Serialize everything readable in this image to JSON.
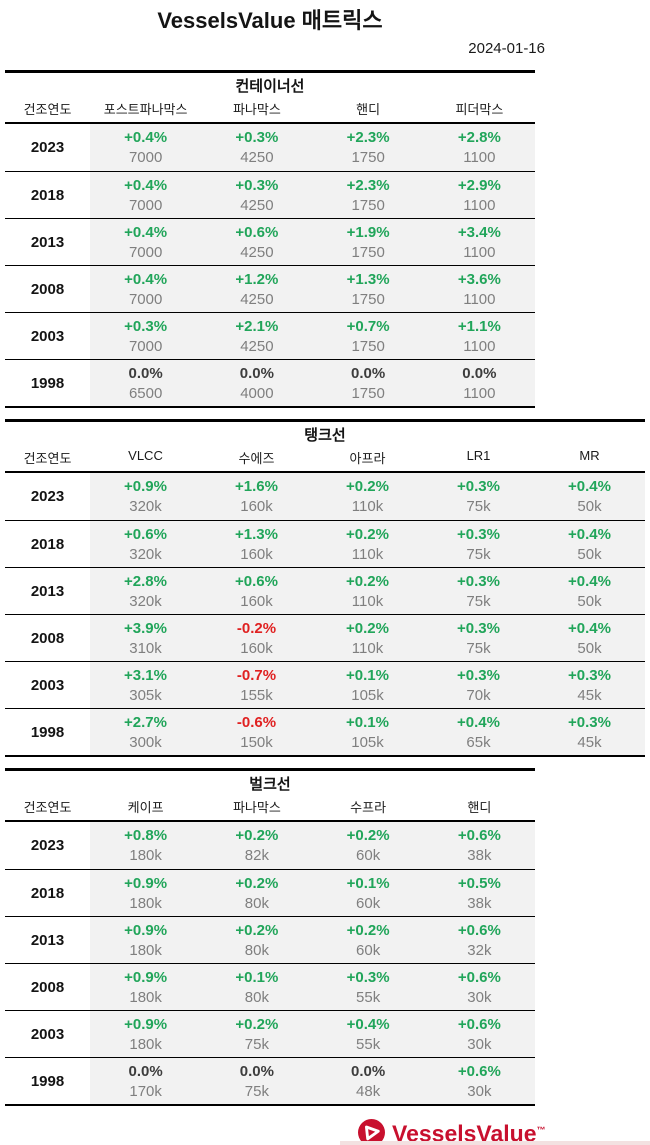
{
  "header": {
    "title": "VesselsValue 매트릭스",
    "date": "2024-01-16"
  },
  "chart_data": [
    {
      "type": "table",
      "title": "컨테이너선",
      "year_header": "건조연도",
      "columns": [
        "포스트파나막스",
        "파나막스",
        "핸디",
        "피더막스"
      ],
      "rows": [
        {
          "year": "2023",
          "cells": [
            {
              "pct": "+0.4%",
              "value": "7000",
              "trend": "up"
            },
            {
              "pct": "+0.3%",
              "value": "4250",
              "trend": "up"
            },
            {
              "pct": "+2.3%",
              "value": "1750",
              "trend": "up"
            },
            {
              "pct": "+2.8%",
              "value": "1100",
              "trend": "up"
            }
          ]
        },
        {
          "year": "2018",
          "cells": [
            {
              "pct": "+0.4%",
              "value": "7000",
              "trend": "up"
            },
            {
              "pct": "+0.3%",
              "value": "4250",
              "trend": "up"
            },
            {
              "pct": "+2.3%",
              "value": "1750",
              "trend": "up"
            },
            {
              "pct": "+2.9%",
              "value": "1100",
              "trend": "up"
            }
          ]
        },
        {
          "year": "2013",
          "cells": [
            {
              "pct": "+0.4%",
              "value": "7000",
              "trend": "up"
            },
            {
              "pct": "+0.6%",
              "value": "4250",
              "trend": "up"
            },
            {
              "pct": "+1.9%",
              "value": "1750",
              "trend": "up"
            },
            {
              "pct": "+3.4%",
              "value": "1100",
              "trend": "up"
            }
          ]
        },
        {
          "year": "2008",
          "cells": [
            {
              "pct": "+0.4%",
              "value": "7000",
              "trend": "up"
            },
            {
              "pct": "+1.2%",
              "value": "4250",
              "trend": "up"
            },
            {
              "pct": "+1.3%",
              "value": "1750",
              "trend": "up"
            },
            {
              "pct": "+3.6%",
              "value": "1100",
              "trend": "up"
            }
          ]
        },
        {
          "year": "2003",
          "cells": [
            {
              "pct": "+0.3%",
              "value": "7000",
              "trend": "up"
            },
            {
              "pct": "+2.1%",
              "value": "4250",
              "trend": "up"
            },
            {
              "pct": "+0.7%",
              "value": "1750",
              "trend": "up"
            },
            {
              "pct": "+1.1%",
              "value": "1100",
              "trend": "up"
            }
          ]
        },
        {
          "year": "1998",
          "cells": [
            {
              "pct": "0.0%",
              "value": "6500",
              "trend": "flat"
            },
            {
              "pct": "0.0%",
              "value": "4000",
              "trend": "flat"
            },
            {
              "pct": "0.0%",
              "value": "1750",
              "trend": "flat"
            },
            {
              "pct": "0.0%",
              "value": "1100",
              "trend": "flat"
            }
          ]
        }
      ]
    },
    {
      "type": "table",
      "title": "탱크선",
      "year_header": "건조연도",
      "columns": [
        "VLCC",
        "수에즈",
        "아프라",
        "LR1",
        "MR"
      ],
      "rows": [
        {
          "year": "2023",
          "cells": [
            {
              "pct": "+0.9%",
              "value": "320k",
              "trend": "up"
            },
            {
              "pct": "+1.6%",
              "value": "160k",
              "trend": "up"
            },
            {
              "pct": "+0.2%",
              "value": "110k",
              "trend": "up"
            },
            {
              "pct": "+0.3%",
              "value": "75k",
              "trend": "up"
            },
            {
              "pct": "+0.4%",
              "value": "50k",
              "trend": "up"
            }
          ]
        },
        {
          "year": "2018",
          "cells": [
            {
              "pct": "+0.6%",
              "value": "320k",
              "trend": "up"
            },
            {
              "pct": "+1.3%",
              "value": "160k",
              "trend": "up"
            },
            {
              "pct": "+0.2%",
              "value": "110k",
              "trend": "up"
            },
            {
              "pct": "+0.3%",
              "value": "75k",
              "trend": "up"
            },
            {
              "pct": "+0.4%",
              "value": "50k",
              "trend": "up"
            }
          ]
        },
        {
          "year": "2013",
          "cells": [
            {
              "pct": "+2.8%",
              "value": "320k",
              "trend": "up"
            },
            {
              "pct": "+0.6%",
              "value": "160k",
              "trend": "up"
            },
            {
              "pct": "+0.2%",
              "value": "110k",
              "trend": "up"
            },
            {
              "pct": "+0.3%",
              "value": "75k",
              "trend": "up"
            },
            {
              "pct": "+0.4%",
              "value": "50k",
              "trend": "up"
            }
          ]
        },
        {
          "year": "2008",
          "cells": [
            {
              "pct": "+3.9%",
              "value": "310k",
              "trend": "up"
            },
            {
              "pct": "-0.2%",
              "value": "160k",
              "trend": "down"
            },
            {
              "pct": "+0.2%",
              "value": "110k",
              "trend": "up"
            },
            {
              "pct": "+0.3%",
              "value": "75k",
              "trend": "up"
            },
            {
              "pct": "+0.4%",
              "value": "50k",
              "trend": "up"
            }
          ]
        },
        {
          "year": "2003",
          "cells": [
            {
              "pct": "+3.1%",
              "value": "305k",
              "trend": "up"
            },
            {
              "pct": "-0.7%",
              "value": "155k",
              "trend": "down"
            },
            {
              "pct": "+0.1%",
              "value": "105k",
              "trend": "up"
            },
            {
              "pct": "+0.3%",
              "value": "70k",
              "trend": "up"
            },
            {
              "pct": "+0.3%",
              "value": "45k",
              "trend": "up"
            }
          ]
        },
        {
          "year": "1998",
          "cells": [
            {
              "pct": "+2.7%",
              "value": "300k",
              "trend": "up"
            },
            {
              "pct": "-0.6%",
              "value": "150k",
              "trend": "down"
            },
            {
              "pct": "+0.1%",
              "value": "105k",
              "trend": "up"
            },
            {
              "pct": "+0.4%",
              "value": "65k",
              "trend": "up"
            },
            {
              "pct": "+0.3%",
              "value": "45k",
              "trend": "up"
            }
          ]
        }
      ]
    },
    {
      "type": "table",
      "title": "벌크선",
      "year_header": "건조연도",
      "columns": [
        "케이프",
        "파나막스",
        "수프라",
        "핸디"
      ],
      "rows": [
        {
          "year": "2023",
          "cells": [
            {
              "pct": "+0.8%",
              "value": "180k",
              "trend": "up"
            },
            {
              "pct": "+0.2%",
              "value": "82k",
              "trend": "up"
            },
            {
              "pct": "+0.2%",
              "value": "60k",
              "trend": "up"
            },
            {
              "pct": "+0.6%",
              "value": "38k",
              "trend": "up"
            }
          ]
        },
        {
          "year": "2018",
          "cells": [
            {
              "pct": "+0.9%",
              "value": "180k",
              "trend": "up"
            },
            {
              "pct": "+0.2%",
              "value": "80k",
              "trend": "up"
            },
            {
              "pct": "+0.1%",
              "value": "60k",
              "trend": "up"
            },
            {
              "pct": "+0.5%",
              "value": "38k",
              "trend": "up"
            }
          ]
        },
        {
          "year": "2013",
          "cells": [
            {
              "pct": "+0.9%",
              "value": "180k",
              "trend": "up"
            },
            {
              "pct": "+0.2%",
              "value": "80k",
              "trend": "up"
            },
            {
              "pct": "+0.2%",
              "value": "60k",
              "trend": "up"
            },
            {
              "pct": "+0.6%",
              "value": "32k",
              "trend": "up"
            }
          ]
        },
        {
          "year": "2008",
          "cells": [
            {
              "pct": "+0.9%",
              "value": "180k",
              "trend": "up"
            },
            {
              "pct": "+0.1%",
              "value": "80k",
              "trend": "up"
            },
            {
              "pct": "+0.3%",
              "value": "55k",
              "trend": "up"
            },
            {
              "pct": "+0.6%",
              "value": "30k",
              "trend": "up"
            }
          ]
        },
        {
          "year": "2003",
          "cells": [
            {
              "pct": "+0.9%",
              "value": "180k",
              "trend": "up"
            },
            {
              "pct": "+0.2%",
              "value": "75k",
              "trend": "up"
            },
            {
              "pct": "+0.4%",
              "value": "55k",
              "trend": "up"
            },
            {
              "pct": "+0.6%",
              "value": "30k",
              "trend": "up"
            }
          ]
        },
        {
          "year": "1998",
          "cells": [
            {
              "pct": "0.0%",
              "value": "170k",
              "trend": "flat"
            },
            {
              "pct": "0.0%",
              "value": "75k",
              "trend": "flat"
            },
            {
              "pct": "0.0%",
              "value": "48k",
              "trend": "flat"
            },
            {
              "pct": "+0.6%",
              "value": "30k",
              "trend": "up"
            }
          ]
        }
      ]
    }
  ],
  "footer": {
    "logo_text": "VesselsValue",
    "trademark": "™"
  },
  "colors": {
    "up": "#21a55a",
    "down": "#e02121",
    "flat": "#3d3d3d",
    "value_gray": "#7f7f7f",
    "row_bg": "#f2f2f2",
    "brand_red": "#c8102e"
  }
}
